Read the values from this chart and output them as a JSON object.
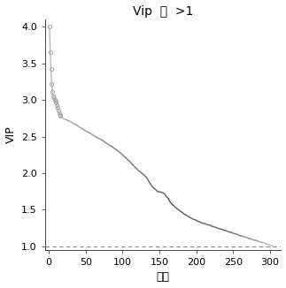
{
  "title": "Vip  値  >1",
  "xlabel": "指数",
  "ylabel": "VIP",
  "xlim": [
    -5,
    315
  ],
  "ylim": [
    0.95,
    4.1
  ],
  "yticks": [
    1.0,
    1.5,
    2.0,
    2.5,
    3.0,
    3.5,
    4.0
  ],
  "xticks": [
    0,
    50,
    100,
    150,
    200,
    250,
    300
  ],
  "hline_y": 1.0,
  "n_points": 305,
  "background_color": "#ffffff",
  "title_fontsize": 10,
  "axis_fontsize": 9,
  "tick_fontsize": 8,
  "n_circles": 16
}
